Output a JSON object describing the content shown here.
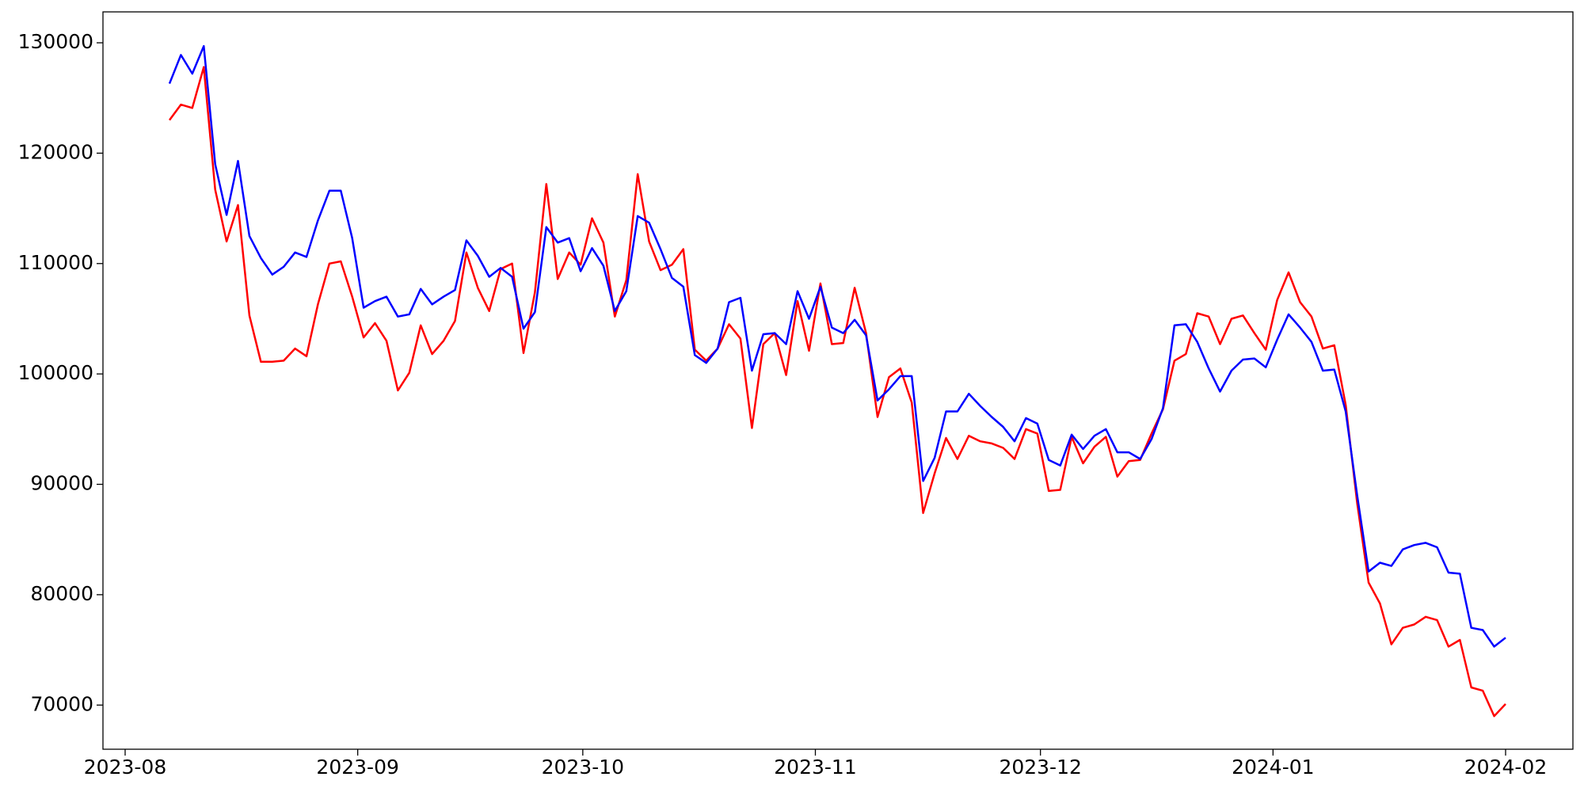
{
  "chart_data": {
    "type": "line",
    "series": [
      {
        "color": "#ff0000",
        "values": [
          123000,
          124400,
          124100,
          127800,
          116700,
          112000,
          115300,
          105300,
          101100,
          101100,
          101200,
          102300,
          101600,
          106300,
          110000,
          110200,
          107000,
          103300,
          104600,
          103000,
          98500,
          100100,
          104400,
          101800,
          103000,
          104800,
          111000,
          107800,
          105700,
          109500,
          110000,
          101900,
          107400,
          117200,
          108600,
          111000,
          109900,
          114100,
          111900,
          105200,
          108500,
          118100,
          112000,
          109400,
          109900,
          111300,
          102200,
          101200,
          102300,
          104500,
          103200,
          95100,
          102700,
          103700,
          99900,
          106600,
          102100,
          108200,
          102700,
          102800,
          107800,
          103700,
          96100,
          99700,
          100500,
          97400,
          87400,
          91000,
          94200,
          92300,
          94400,
          93900,
          93700,
          93300,
          92300,
          95000,
          94600,
          89400,
          89500,
          94300,
          91900,
          93400,
          94300,
          90700,
          92100,
          92200,
          94600,
          96800,
          101200,
          101800,
          105500,
          105200,
          102700,
          105000,
          105300,
          103700,
          102200,
          106700,
          109200,
          106500,
          105200,
          102300,
          102600,
          97200,
          88300,
          81100,
          79200,
          75500,
          77000,
          77300,
          78000,
          77700,
          75300,
          75900,
          71600,
          71300,
          69000,
          70100
        ]
      },
      {
        "color": "#0000ff",
        "values": [
          126300,
          128900,
          127200,
          129700,
          119000,
          114400,
          119300,
          112500,
          110500,
          109000,
          109700,
          111000,
          110600,
          113900,
          116600,
          116600,
          112300,
          106000,
          106600,
          107000,
          105200,
          105400,
          107700,
          106300,
          107000,
          107600,
          112100,
          110700,
          108800,
          109600,
          108800,
          104100,
          105600,
          113300,
          111900,
          112300,
          109300,
          111400,
          109800,
          105700,
          107500,
          114300,
          113700,
          111300,
          108700,
          107900,
          101700,
          101000,
          102300,
          106500,
          106900,
          100300,
          103600,
          103700,
          102700,
          107500,
          105000,
          107900,
          104200,
          103700,
          104900,
          103500,
          97600,
          98600,
          99800,
          99800,
          90300,
          92400,
          96600,
          96600,
          98200,
          97100,
          96100,
          95200,
          93900,
          96000,
          95500,
          92200,
          91700,
          94500,
          93200,
          94400,
          95000,
          92900,
          92900,
          92300,
          94100,
          96900,
          104400,
          104500,
          102900,
          100500,
          98400,
          100300,
          101300,
          101400,
          100600,
          103100,
          105400,
          104200,
          102900,
          100300,
          100400,
          96600,
          89000,
          82100,
          82900,
          82600,
          84100,
          84500,
          84700,
          84300,
          82000,
          81900,
          77000,
          76800,
          75300,
          76100
        ]
      }
    ],
    "ylim": [
      66000,
      132800
    ],
    "yticks": [
      70000,
      80000,
      90000,
      100000,
      110000,
      120000,
      130000
    ],
    "xticks": [
      "2023-08",
      "2023-09",
      "2023-10",
      "2023-11",
      "2023-12",
      "2024-01",
      "2024-02"
    ]
  }
}
